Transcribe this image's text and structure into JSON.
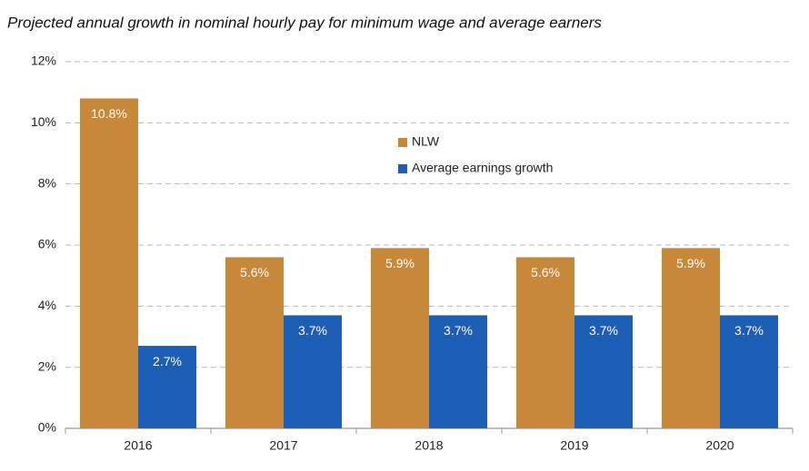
{
  "chart_data": {
    "type": "bar",
    "title": "Projected annual growth in nominal hourly pay for minimum wage and average earners",
    "categories": [
      "2016",
      "2017",
      "2018",
      "2019",
      "2020"
    ],
    "series": [
      {
        "name": "NLW",
        "color": "#c8883a",
        "values": [
          10.8,
          5.6,
          5.9,
          5.6,
          5.9
        ],
        "value_labels": [
          "10.8%",
          "5.6%",
          "5.9%",
          "5.6%",
          "5.9%"
        ]
      },
      {
        "name": "Average earnings growth",
        "color": "#1c5db5",
        "values": [
          2.7,
          3.7,
          3.7,
          3.7,
          3.7
        ],
        "value_labels": [
          "2.7%",
          "3.7%",
          "3.7%",
          "3.7%",
          "3.7%"
        ]
      }
    ],
    "ylim": [
      0,
      12
    ],
    "yticks": [
      {
        "value": 0,
        "label": "0%"
      },
      {
        "value": 2,
        "label": "2%"
      },
      {
        "value": 4,
        "label": "4%"
      },
      {
        "value": 6,
        "label": "6%"
      },
      {
        "value": 8,
        "label": "8%"
      },
      {
        "value": 10,
        "label": "10%"
      },
      {
        "value": 12,
        "label": "12%"
      }
    ],
    "grid": true
  }
}
